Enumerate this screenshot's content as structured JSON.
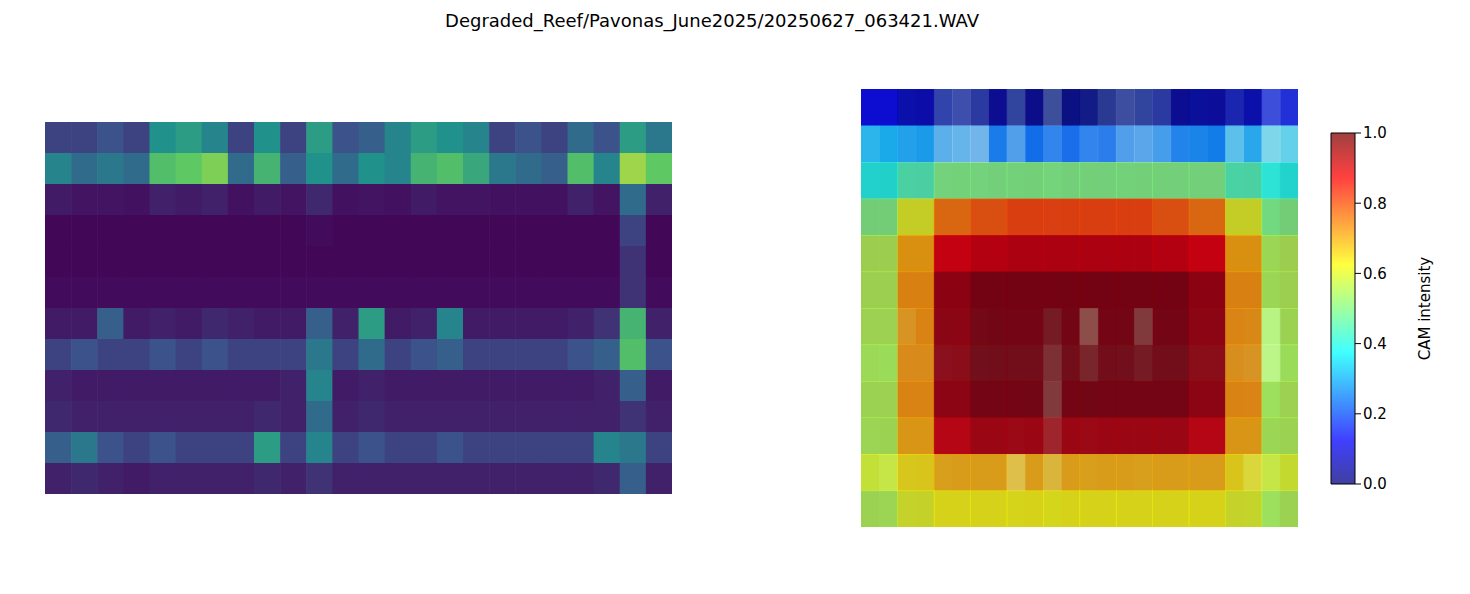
{
  "title": "Degraded_Reef/Pavonas_June2025/20250627_063421.WAV",
  "chart_data": [
    {
      "type": "heatmap",
      "tick_labels": false,
      "cells": [
        [
          0.2,
          0.2,
          0.25,
          0.2,
          0.5,
          0.55,
          0.45,
          0.2,
          0.5,
          0.2,
          0.55,
          0.25,
          0.3,
          0.45,
          0.55,
          0.5,
          0.45,
          0.2,
          0.25,
          0.2,
          0.35,
          0.25,
          0.55,
          0.4
        ],
        [
          0.45,
          0.35,
          0.4,
          0.35,
          0.7,
          0.75,
          0.8,
          0.35,
          0.65,
          0.3,
          0.5,
          0.35,
          0.5,
          0.45,
          0.65,
          0.7,
          0.6,
          0.4,
          0.35,
          0.3,
          0.7,
          0.45,
          0.85,
          0.75
        ],
        [
          0.08,
          0.06,
          0.06,
          0.05,
          0.1,
          0.08,
          0.1,
          0.05,
          0.08,
          0.06,
          0.12,
          0.05,
          0.06,
          0.05,
          0.08,
          0.06,
          0.06,
          0.05,
          0.05,
          0.05,
          0.1,
          0.06,
          0.35,
          0.1
        ],
        [
          0.02,
          0.02,
          0.02,
          0.02,
          0.02,
          0.02,
          0.02,
          0.02,
          0.02,
          0.02,
          0.03,
          0.02,
          0.02,
          0.02,
          0.02,
          0.02,
          0.02,
          0.02,
          0.02,
          0.02,
          0.02,
          0.02,
          0.2,
          0.02
        ],
        [
          0.02,
          0.02,
          0.02,
          0.02,
          0.02,
          0.02,
          0.02,
          0.02,
          0.02,
          0.02,
          0.02,
          0.02,
          0.02,
          0.02,
          0.02,
          0.02,
          0.02,
          0.02,
          0.02,
          0.02,
          0.02,
          0.02,
          0.15,
          0.02
        ],
        [
          0.03,
          0.03,
          0.03,
          0.03,
          0.03,
          0.03,
          0.03,
          0.03,
          0.03,
          0.03,
          0.03,
          0.03,
          0.03,
          0.03,
          0.03,
          0.03,
          0.03,
          0.03,
          0.03,
          0.03,
          0.03,
          0.03,
          0.15,
          0.03
        ],
        [
          0.08,
          0.08,
          0.3,
          0.08,
          0.1,
          0.08,
          0.12,
          0.1,
          0.08,
          0.08,
          0.3,
          0.1,
          0.55,
          0.08,
          0.1,
          0.45,
          0.08,
          0.08,
          0.08,
          0.08,
          0.1,
          0.15,
          0.65,
          0.1
        ],
        [
          0.2,
          0.25,
          0.2,
          0.2,
          0.25,
          0.2,
          0.25,
          0.2,
          0.2,
          0.2,
          0.4,
          0.2,
          0.35,
          0.2,
          0.25,
          0.3,
          0.2,
          0.2,
          0.2,
          0.2,
          0.25,
          0.3,
          0.7,
          0.25
        ],
        [
          0.1,
          0.08,
          0.08,
          0.08,
          0.08,
          0.08,
          0.08,
          0.08,
          0.08,
          0.1,
          0.45,
          0.08,
          0.1,
          0.08,
          0.08,
          0.08,
          0.08,
          0.08,
          0.08,
          0.08,
          0.08,
          0.1,
          0.3,
          0.08
        ],
        [
          0.12,
          0.1,
          0.1,
          0.1,
          0.1,
          0.1,
          0.1,
          0.1,
          0.12,
          0.1,
          0.35,
          0.1,
          0.12,
          0.1,
          0.1,
          0.1,
          0.1,
          0.1,
          0.1,
          0.1,
          0.1,
          0.1,
          0.15,
          0.1
        ],
        [
          0.3,
          0.4,
          0.25,
          0.2,
          0.25,
          0.2,
          0.2,
          0.2,
          0.55,
          0.2,
          0.45,
          0.2,
          0.25,
          0.2,
          0.2,
          0.25,
          0.2,
          0.2,
          0.2,
          0.2,
          0.2,
          0.45,
          0.4,
          0.2
        ],
        [
          0.1,
          0.12,
          0.1,
          0.08,
          0.1,
          0.1,
          0.1,
          0.1,
          0.12,
          0.1,
          0.15,
          0.1,
          0.1,
          0.1,
          0.1,
          0.1,
          0.1,
          0.1,
          0.1,
          0.1,
          0.1,
          0.12,
          0.3,
          0.1
        ]
      ]
    },
    {
      "type": "heatmap",
      "tick_labels": false,
      "cells": [
        [
          0.1,
          0.05,
          0.03,
          0.02,
          0.01,
          0.0,
          0.0,
          0.01,
          0.02,
          0.03,
          0.05,
          0.1
        ],
        [
          0.3,
          0.28,
          0.25,
          0.24,
          0.23,
          0.22,
          0.22,
          0.23,
          0.24,
          0.25,
          0.28,
          0.3
        ],
        [
          0.4,
          0.45,
          0.5,
          0.5,
          0.5,
          0.5,
          0.5,
          0.5,
          0.5,
          0.5,
          0.45,
          0.4
        ],
        [
          0.5,
          0.6,
          0.75,
          0.78,
          0.8,
          0.8,
          0.8,
          0.8,
          0.78,
          0.75,
          0.6,
          0.5
        ],
        [
          0.55,
          0.7,
          0.9,
          0.92,
          0.93,
          0.93,
          0.93,
          0.93,
          0.92,
          0.9,
          0.7,
          0.55
        ],
        [
          0.55,
          0.72,
          0.97,
          1.0,
          1.0,
          1.0,
          1.0,
          1.0,
          1.0,
          0.97,
          0.72,
          0.55
        ],
        [
          0.55,
          0.72,
          0.97,
          1.0,
          1.0,
          1.0,
          1.0,
          1.0,
          1.0,
          0.97,
          0.72,
          0.55
        ],
        [
          0.55,
          0.72,
          0.97,
          1.0,
          1.0,
          1.0,
          1.0,
          1.0,
          1.0,
          0.97,
          0.72,
          0.55
        ],
        [
          0.55,
          0.72,
          0.97,
          1.0,
          1.0,
          1.0,
          1.0,
          1.0,
          1.0,
          0.97,
          0.72,
          0.55
        ],
        [
          0.55,
          0.7,
          0.92,
          0.95,
          0.95,
          0.95,
          0.95,
          0.95,
          0.95,
          0.92,
          0.7,
          0.55
        ],
        [
          0.6,
          0.65,
          0.7,
          0.7,
          0.7,
          0.7,
          0.7,
          0.7,
          0.7,
          0.7,
          0.65,
          0.6
        ],
        [
          0.55,
          0.6,
          0.62,
          0.62,
          0.62,
          0.62,
          0.62,
          0.62,
          0.62,
          0.62,
          0.6,
          0.55
        ]
      ],
      "colorbar": {
        "label": "CAM intensity",
        "range": [
          0,
          1
        ],
        "ticks": [
          {
            "value": 0,
            "label": "0.0"
          },
          {
            "value": 0.2,
            "label": "0.2"
          },
          {
            "value": 0.4,
            "label": "0.4"
          },
          {
            "value": 0.6,
            "label": "0.6"
          },
          {
            "value": 0.8,
            "label": "0.8"
          },
          {
            "value": 1,
            "label": "1.0"
          }
        ]
      }
    }
  ]
}
